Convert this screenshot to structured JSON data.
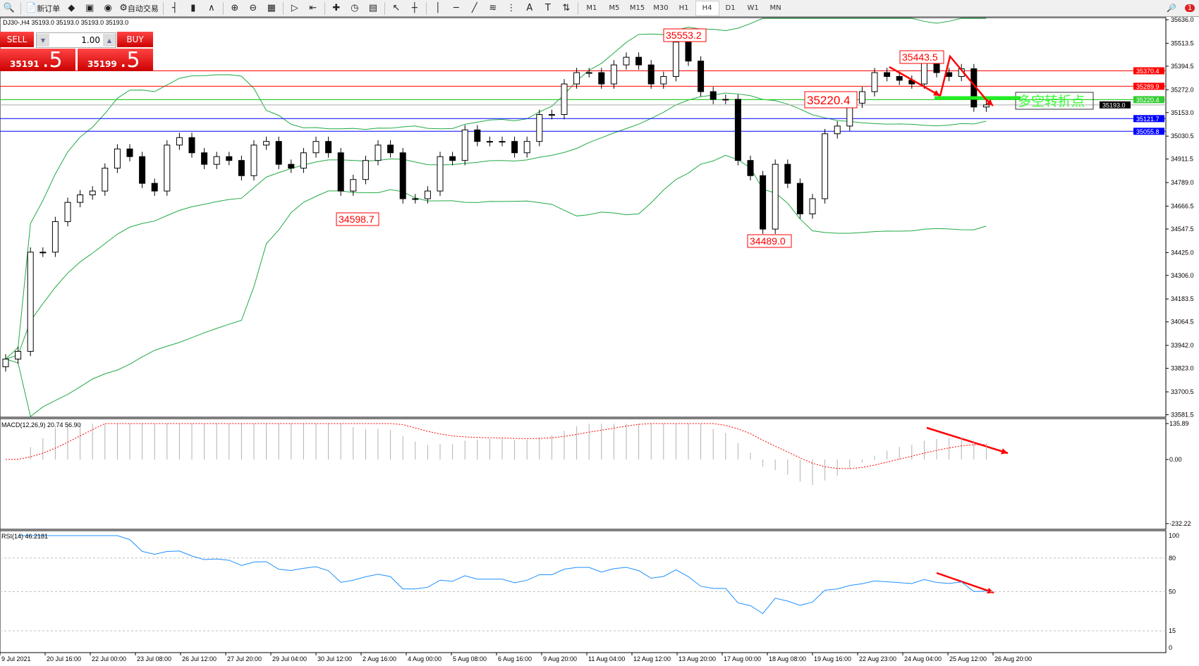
{
  "toolbar": {
    "items": [
      {
        "icon": "zoom-icon"
      },
      {
        "icon": "new-order-icon",
        "label": "新订单"
      },
      {
        "icon": "metaeditor-icon"
      },
      {
        "icon": "navigator-icon"
      },
      {
        "icon": "signals-icon"
      },
      {
        "icon": "autotrading-icon",
        "label": "自动交易"
      },
      {
        "icon": "bar-chart-icon"
      },
      {
        "icon": "candlestick-icon"
      },
      {
        "icon": "line-chart-icon"
      },
      {
        "icon": "zoom-in-icon"
      },
      {
        "icon": "zoom-out-icon"
      },
      {
        "icon": "tile-windows-icon"
      },
      {
        "icon": "autoscroll-icon"
      },
      {
        "icon": "chart-shift-icon"
      },
      {
        "icon": "indicators-icon"
      },
      {
        "icon": "periods-icon"
      },
      {
        "icon": "templates-icon"
      },
      {
        "icon": "cursor-icon"
      },
      {
        "icon": "crosshair-icon"
      },
      {
        "icon": "vertical-line-icon"
      },
      {
        "icon": "horizontal-line-icon"
      },
      {
        "icon": "trendline-icon"
      },
      {
        "icon": "fibonacci-icon"
      },
      {
        "icon": "fibo-fan-icon"
      },
      {
        "icon": "text-icon"
      },
      {
        "icon": "text-label-icon"
      },
      {
        "icon": "arrows-icon"
      }
    ],
    "timeframes": [
      "M1",
      "M5",
      "M15",
      "M30",
      "H1",
      "H4",
      "D1",
      "W1",
      "MN"
    ],
    "active_timeframe": "H4",
    "notifications": "1"
  },
  "chart_header": "DJ30-,H4  35193.0 35193.0 35193.0 35193.0",
  "trade_panel": {
    "sell_label": "SELL",
    "buy_label": "BUY",
    "lot": "1.00",
    "sell_price_main": "35191",
    "sell_price_big": ".5",
    "buy_price_main": "35199",
    "buy_price_big": ".5",
    "color": "#e02020"
  },
  "chart_data": [
    {
      "type": "candlestick",
      "symbol": "DJ30-",
      "timeframe": "H4",
      "ylim": [
        33581.5,
        35636.0
      ],
      "yticks": [
        "35636.0",
        "35513.5",
        "35394.5",
        "35272.0",
        "35153.0",
        "35030.5",
        "34911.5",
        "34789.0",
        "34666.5",
        "34547.5",
        "34425.0",
        "34306.0",
        "34183.5",
        "34064.5",
        "33942.0",
        "33823.0",
        "33700.5",
        "33581.5"
      ],
      "xticks": [
        "9 Jul 2021",
        "20 Jul 16:00",
        "22 Jul 00:00",
        "23 Jul 08:00",
        "26 Jul 12:00",
        "27 Jul 20:00",
        "29 Jul 04:00",
        "30 Jul 12:00",
        "2 Aug 16:00",
        "4 Aug 00:00",
        "5 Aug 08:00",
        "6 Aug 16:00",
        "9 Aug 20:00",
        "11 Aug 04:00",
        "12 Aug 12:00",
        "13 Aug 20:00",
        "17 Aug 00:00",
        "18 Aug 08:00",
        "19 Aug 16:00",
        "22 Aug 23:00",
        "24 Aug 04:00",
        "25 Aug 12:00",
        "26 Aug 20:00"
      ],
      "close": [
        33871,
        33911,
        34427,
        34427,
        34586,
        34686,
        34725,
        34745,
        34864,
        34964,
        34924,
        34785,
        34745,
        34984,
        35023,
        34944,
        34884,
        34924,
        34904,
        34825,
        34984,
        35003,
        34884,
        34864,
        34944,
        35003,
        34944,
        34745,
        34805,
        34904,
        34984,
        34944,
        34705,
        34705,
        34745,
        34924,
        34904,
        35063,
        35003,
        35003,
        35003,
        34944,
        35003,
        35143,
        35143,
        35302,
        35361,
        35361,
        35302,
        35401,
        35441,
        35401,
        35302,
        35341,
        35520,
        35421,
        35262,
        35222,
        35222,
        34904,
        34825,
        34547,
        34884,
        34785,
        34626,
        34705,
        35043,
        35083,
        35202,
        35262,
        35361,
        35341,
        35321,
        35302,
        35421,
        35361,
        35341,
        35381,
        35182,
        35193
      ],
      "indicator": "Bollinger Bands",
      "bull_color": "#ffffff",
      "bear_color": "#000000",
      "band_color": "#22aa44",
      "levels": [
        {
          "price": 35370.4,
          "label": "35370.4",
          "color": "#ff0000"
        },
        {
          "price": 35289.9,
          "label": "35289.9",
          "color": "#ff0000"
        },
        {
          "price": 35220.4,
          "label": "35220.4",
          "color": "#33cc33"
        },
        {
          "price": 35193.0,
          "label": "35193.0",
          "color": "#000000"
        },
        {
          "price": 35121.7,
          "label": "35121.7",
          "color": "#0000ff"
        },
        {
          "price": 35055.8,
          "label": "35055.8",
          "color": "#0000ff"
        }
      ],
      "annotations": [
        "35553.2",
        "34598.7",
        "34489.0",
        "35220.4",
        "35443.5"
      ],
      "text_note": "多空转折点"
    },
    {
      "type": "histogram+line",
      "label": "MACD(12,26,9) 20.74 56.90",
      "ylim": [
        -232.22,
        135.89
      ],
      "yticks": [
        "135.89",
        "0.00",
        "-232.22"
      ],
      "hist_color": "#b0b0b0",
      "signal_color": "#ff0000"
    },
    {
      "type": "line",
      "label": "RSI(14) 46.2181",
      "ylim": [
        0,
        100
      ],
      "yticks": [
        "100",
        "80",
        "50",
        "15",
        "0"
      ],
      "levels": [
        80,
        50,
        15
      ],
      "line_color": "#1e90ff"
    }
  ]
}
